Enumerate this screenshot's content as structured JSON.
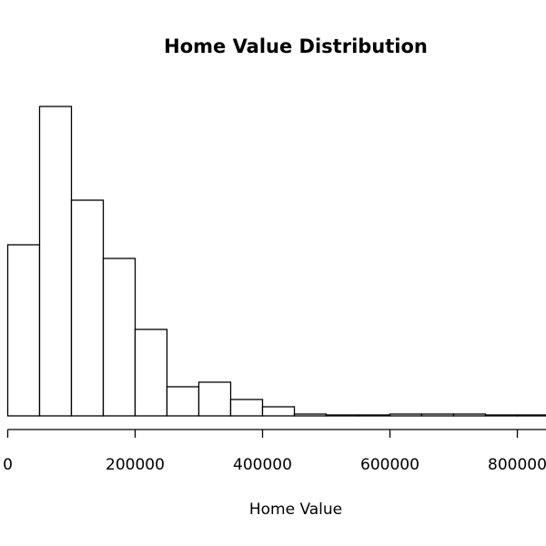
{
  "chart_data": {
    "type": "bar",
    "title": "Home Value Distribution",
    "xlabel": "Home Value",
    "ylabel": "",
    "bin_width": 50000,
    "bins": [
      {
        "start": 0,
        "count": 188
      },
      {
        "start": 50000,
        "count": 340
      },
      {
        "start": 100000,
        "count": 237
      },
      {
        "start": 150000,
        "count": 173
      },
      {
        "start": 200000,
        "count": 95
      },
      {
        "start": 250000,
        "count": 32
      },
      {
        "start": 300000,
        "count": 37
      },
      {
        "start": 350000,
        "count": 18
      },
      {
        "start": 400000,
        "count": 10
      },
      {
        "start": 450000,
        "count": 2
      },
      {
        "start": 500000,
        "count": 1
      },
      {
        "start": 550000,
        "count": 1
      },
      {
        "start": 600000,
        "count": 2
      },
      {
        "start": 650000,
        "count": 2
      },
      {
        "start": 700000,
        "count": 2
      },
      {
        "start": 750000,
        "count": 1
      },
      {
        "start": 800000,
        "count": 1
      }
    ],
    "xlim": [
      0,
      850000
    ],
    "ylim": [
      0,
      340
    ],
    "x_ticks": [
      0,
      200000,
      400000,
      600000,
      800000
    ],
    "x_tick_labels": [
      "0",
      "200000",
      "400000",
      "600000",
      "800000"
    ],
    "grid": false,
    "bar_fill": "#ffffff",
    "bar_stroke": "#000000"
  }
}
